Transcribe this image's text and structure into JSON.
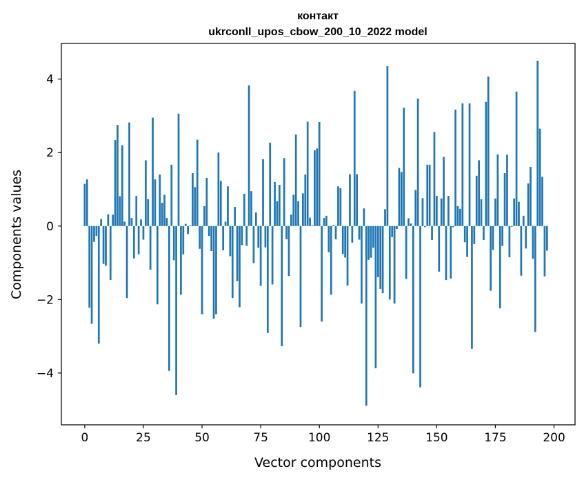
{
  "chart_data": {
    "type": "bar",
    "title_line1": "контакт",
    "title_line2": "ukrconll_upos_cbow_200_10_2022 model",
    "xlabel": "Vector components",
    "ylabel": "Components values",
    "xlim": [
      -9.95,
      208.95
    ],
    "ylim": [
      -5.41,
      4.97
    ],
    "xticks": [
      0,
      25,
      50,
      75,
      100,
      125,
      150,
      175,
      200
    ],
    "xtick_labels": [
      "0",
      "25",
      "50",
      "75",
      "100",
      "125",
      "150",
      "175",
      "200"
    ],
    "yticks": [
      -4,
      -2,
      0,
      2,
      4
    ],
    "ytick_labels": [
      "−4",
      "−2",
      "0",
      "2",
      "4"
    ],
    "bar_color": "#1f77b4",
    "grid": false,
    "values": [
      1.15,
      1.27,
      -2.22,
      -2.66,
      -0.43,
      -0.27,
      -3.2,
      0.19,
      -1.03,
      -1.08,
      0.32,
      -1.47,
      0.31,
      2.34,
      2.75,
      0.81,
      2.2,
      0.12,
      -1.96,
      2.82,
      0.22,
      -0.88,
      0.82,
      -0.77,
      0.18,
      -0.37,
      1.79,
      0.73,
      -1.19,
      2.95,
      1.27,
      -2.13,
      1.4,
      0.63,
      0.85,
      0.22,
      -3.94,
      1.67,
      -0.93,
      -4.6,
      3.06,
      -1.87,
      -0.77,
      0.06,
      -0.22,
      0.02,
      1.44,
      1.06,
      2.35,
      -0.62,
      -2.4,
      0.54,
      1.31,
      -0.27,
      -0.68,
      -2.52,
      -2.4,
      2.0,
      1.23,
      -0.66,
      0.12,
      1.08,
      -0.82,
      -1.96,
      0.52,
      -1.5,
      -2.21,
      -0.52,
      0.88,
      -0.54,
      3.83,
      0.95,
      -1.01,
      0.37,
      -0.59,
      -1.63,
      1.82,
      -0.58,
      -2.91,
      2.27,
      -1.59,
      1.2,
      0.68,
      1.12,
      -3.27,
      1.85,
      -0.36,
      -1.36,
      0.31,
      0.85,
      2.49,
      0.68,
      -2.75,
      0.89,
      1.4,
      2.84,
      0.23,
      0.02,
      2.06,
      2.11,
      2.83,
      -2.6,
      0.22,
      0.28,
      -0.71,
      -1.87,
      0.03,
      -0.36,
      1.08,
      1.03,
      -0.76,
      -0.86,
      -1.62,
      1.41,
      -0.45,
      3.68,
      1.41,
      -0.37,
      -2.11,
      0.48,
      -4.89,
      -0.92,
      -0.86,
      -0.59,
      -3.87,
      -1.39,
      -1.71,
      -1.83,
      0.46,
      4.35,
      -2.0,
      -0.3,
      -2.11,
      -0.08,
      1.58,
      1.47,
      3.22,
      -1.44,
      0.21,
      0.07,
      -4.01,
      0.98,
      3.47,
      -4.39,
      0.76,
      -0.03,
      1.67,
      1.67,
      -0.38,
      2.56,
      0.82,
      -1.24,
      0.75,
      1.88,
      -1.47,
      0.82,
      -1.43,
      -0.03,
      3.17,
      0.54,
      0.47,
      3.34,
      -0.44,
      -0.84,
      3.34,
      -3.34,
      -0.49,
      1.37,
      1.79,
      0.73,
      -0.38,
      3.38,
      4.07,
      -1.76,
      -0.65,
      0.75,
      1.95,
      -2.24,
      -0.54,
      1.44,
      1.94,
      -0.85,
      -0.02,
      0.75,
      3.66,
      0.66,
      -1.35,
      0.28,
      -0.61,
      1.16,
      1.61,
      -0.89,
      -2.88,
      4.5,
      2.65,
      1.34,
      -1.37,
      -0.67
    ]
  }
}
